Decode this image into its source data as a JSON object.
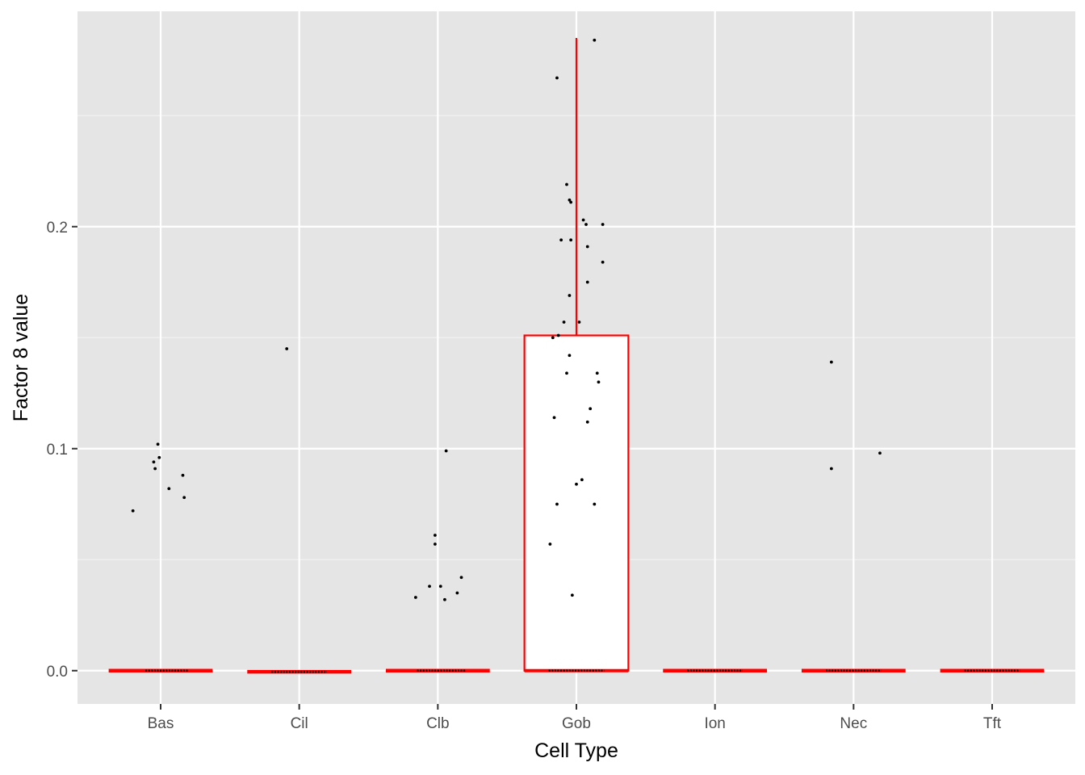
{
  "chart_data": {
    "type": "boxplot",
    "xlabel": "Cell Type",
    "ylabel": "Factor 8 value",
    "categories": [
      "Bas",
      "Cil",
      "Clb",
      "Gob",
      "Ion",
      "Nec",
      "Tft"
    ],
    "y_ticks": [
      {
        "value": 0.0,
        "label": "0.0"
      },
      {
        "value": 0.1,
        "label": "0.1"
      },
      {
        "value": 0.2,
        "label": "0.2"
      }
    ],
    "y_minor_ticks": [
      0.05,
      0.15,
      0.25
    ],
    "ylim": [
      -0.015,
      0.297
    ],
    "grid": true,
    "background": "#e5e5e5",
    "box_color": "#ff0000",
    "point_color": "#000000",
    "boxes": [
      {
        "category": "Bas",
        "q1": 0.0,
        "median": 0.0,
        "q3": 0.0,
        "whisker_low": 0.0,
        "whisker_high": 0.0
      },
      {
        "category": "Cil",
        "q1": -0.0005,
        "median": -0.0005,
        "q3": -0.0005,
        "whisker_low": -0.0005,
        "whisker_high": -0.0005
      },
      {
        "category": "Clb",
        "q1": 0.0,
        "median": 0.0,
        "q3": 0.0,
        "whisker_low": 0.0,
        "whisker_high": 0.0
      },
      {
        "category": "Gob",
        "q1": 0.0,
        "median": 0.0,
        "q3": 0.151,
        "whisker_low": 0.0,
        "whisker_high": 0.285
      },
      {
        "category": "Ion",
        "q1": 0.0,
        "median": 0.0,
        "q3": 0.0,
        "whisker_low": 0.0,
        "whisker_high": 0.0
      },
      {
        "category": "Nec",
        "q1": 0.0,
        "median": 0.0,
        "q3": 0.0,
        "whisker_low": 0.0,
        "whisker_high": 0.0
      },
      {
        "category": "Tft",
        "q1": 0.0,
        "median": 0.0,
        "q3": 0.0,
        "whisker_low": 0.0,
        "whisker_high": 0.0
      }
    ],
    "points": [
      {
        "category": "Bas",
        "jitter": -0.2,
        "value": 0.072
      },
      {
        "category": "Bas",
        "jitter": -0.05,
        "value": 0.094
      },
      {
        "category": "Bas",
        "jitter": -0.04,
        "value": 0.091
      },
      {
        "category": "Bas",
        "jitter": -0.02,
        "value": 0.102
      },
      {
        "category": "Bas",
        "jitter": -0.01,
        "value": 0.096
      },
      {
        "category": "Bas",
        "jitter": 0.06,
        "value": 0.082
      },
      {
        "category": "Bas",
        "jitter": 0.16,
        "value": 0.088
      },
      {
        "category": "Bas",
        "jitter": 0.17,
        "value": 0.078
      },
      {
        "category": "Cil",
        "jitter": -0.09,
        "value": 0.145
      },
      {
        "category": "Clb",
        "jitter": -0.16,
        "value": 0.033
      },
      {
        "category": "Clb",
        "jitter": -0.06,
        "value": 0.038
      },
      {
        "category": "Clb",
        "jitter": -0.02,
        "value": 0.061
      },
      {
        "category": "Clb",
        "jitter": -0.02,
        "value": 0.057
      },
      {
        "category": "Clb",
        "jitter": 0.02,
        "value": 0.038
      },
      {
        "category": "Clb",
        "jitter": 0.05,
        "value": 0.032
      },
      {
        "category": "Clb",
        "jitter": 0.06,
        "value": 0.099
      },
      {
        "category": "Clb",
        "jitter": 0.14,
        "value": 0.035
      },
      {
        "category": "Clb",
        "jitter": 0.17,
        "value": 0.042
      },
      {
        "category": "Gob",
        "jitter": 0.13,
        "value": 0.284
      },
      {
        "category": "Gob",
        "jitter": -0.14,
        "value": 0.267
      },
      {
        "category": "Gob",
        "jitter": -0.07,
        "value": 0.219
      },
      {
        "category": "Gob",
        "jitter": -0.05,
        "value": 0.212
      },
      {
        "category": "Gob",
        "jitter": -0.04,
        "value": 0.211
      },
      {
        "category": "Gob",
        "jitter": 0.05,
        "value": 0.203
      },
      {
        "category": "Gob",
        "jitter": 0.07,
        "value": 0.201
      },
      {
        "category": "Gob",
        "jitter": 0.19,
        "value": 0.201
      },
      {
        "category": "Gob",
        "jitter": -0.11,
        "value": 0.194
      },
      {
        "category": "Gob",
        "jitter": -0.04,
        "value": 0.194
      },
      {
        "category": "Gob",
        "jitter": 0.08,
        "value": 0.191
      },
      {
        "category": "Gob",
        "jitter": 0.19,
        "value": 0.184
      },
      {
        "category": "Gob",
        "jitter": 0.08,
        "value": 0.175
      },
      {
        "category": "Gob",
        "jitter": -0.05,
        "value": 0.169
      },
      {
        "category": "Gob",
        "jitter": -0.09,
        "value": 0.157
      },
      {
        "category": "Gob",
        "jitter": 0.02,
        "value": 0.157
      },
      {
        "category": "Gob",
        "jitter": -0.13,
        "value": 0.151
      },
      {
        "category": "Gob",
        "jitter": -0.17,
        "value": 0.15
      },
      {
        "category": "Gob",
        "jitter": -0.05,
        "value": 0.142
      },
      {
        "category": "Gob",
        "jitter": -0.07,
        "value": 0.134
      },
      {
        "category": "Gob",
        "jitter": 0.15,
        "value": 0.134
      },
      {
        "category": "Gob",
        "jitter": 0.16,
        "value": 0.13
      },
      {
        "category": "Gob",
        "jitter": 0.1,
        "value": 0.118
      },
      {
        "category": "Gob",
        "jitter": -0.16,
        "value": 0.114
      },
      {
        "category": "Gob",
        "jitter": 0.08,
        "value": 0.112
      },
      {
        "category": "Gob",
        "jitter": 0.04,
        "value": 0.086
      },
      {
        "category": "Gob",
        "jitter": 0.0,
        "value": 0.084
      },
      {
        "category": "Gob",
        "jitter": -0.14,
        "value": 0.075
      },
      {
        "category": "Gob",
        "jitter": 0.13,
        "value": 0.075
      },
      {
        "category": "Gob",
        "jitter": -0.19,
        "value": 0.057
      },
      {
        "category": "Gob",
        "jitter": -0.03,
        "value": 0.034
      },
      {
        "category": "Nec",
        "jitter": -0.16,
        "value": 0.139
      },
      {
        "category": "Nec",
        "jitter": -0.16,
        "value": 0.091
      },
      {
        "category": "Nec",
        "jitter": 0.19,
        "value": 0.098
      }
    ],
    "zero_cluster": [
      {
        "category": "Bas",
        "value": 0.0,
        "jitter_min": -0.11,
        "jitter_max": 0.2
      },
      {
        "category": "Cil",
        "value": -0.0005,
        "jitter_min": -0.2,
        "jitter_max": 0.2
      },
      {
        "category": "Clb",
        "value": 0.0,
        "jitter_min": -0.15,
        "jitter_max": 0.2
      },
      {
        "category": "Gob",
        "value": 0.0,
        "jitter_min": -0.2,
        "jitter_max": 0.2
      },
      {
        "category": "Ion",
        "value": 0.0,
        "jitter_min": -0.2,
        "jitter_max": 0.2
      },
      {
        "category": "Nec",
        "value": 0.0,
        "jitter_min": -0.2,
        "jitter_max": 0.2
      },
      {
        "category": "Tft",
        "value": 0.0,
        "jitter_min": -0.2,
        "jitter_max": 0.2
      }
    ]
  }
}
